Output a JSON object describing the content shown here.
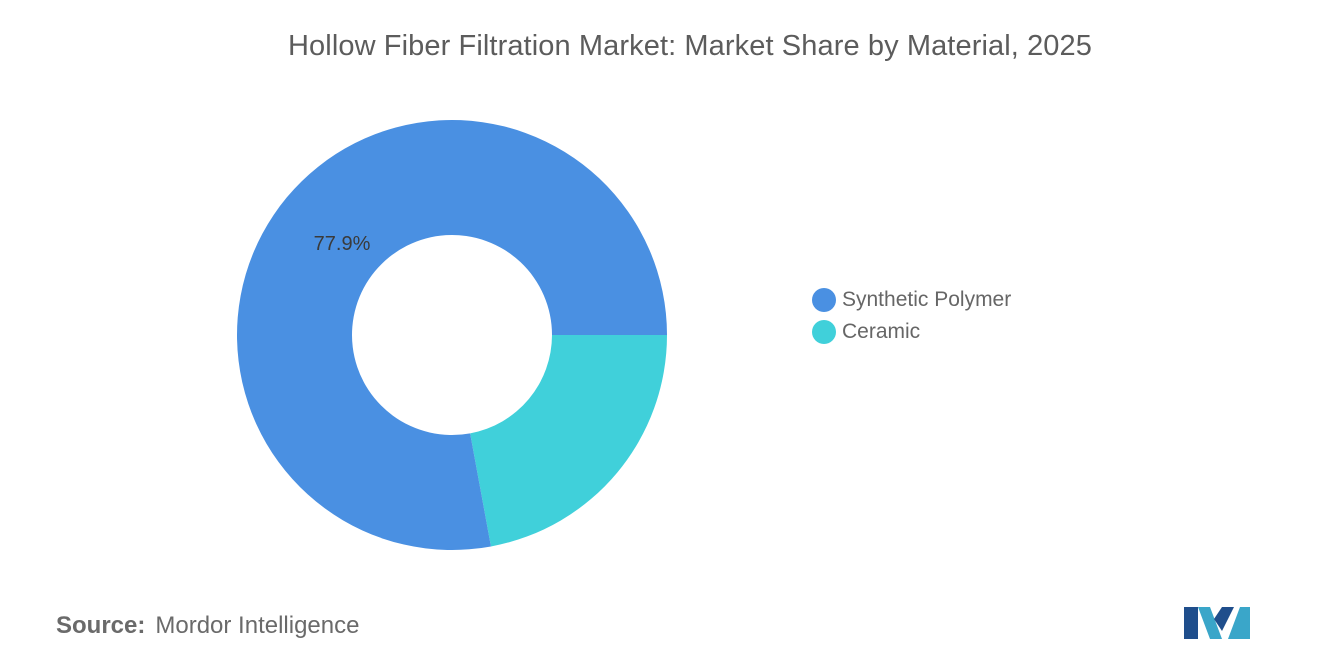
{
  "chart_data": {
    "type": "pie",
    "title": "Hollow Fiber Filtration Market: Market Share by Material, 2025",
    "categories": [
      "Synthetic Polymer",
      "Ceramic"
    ],
    "values": [
      77.9,
      22.1
    ],
    "data_labels": [
      "77.9%",
      ""
    ],
    "colors": [
      "#4a90e2",
      "#40d0da"
    ],
    "donut": true,
    "legend_placement": "right"
  },
  "source": {
    "label": "Source:",
    "text": "Mordor Intelligence"
  },
  "logo": {
    "icon": "mordor-intelligence-logo-icon"
  }
}
